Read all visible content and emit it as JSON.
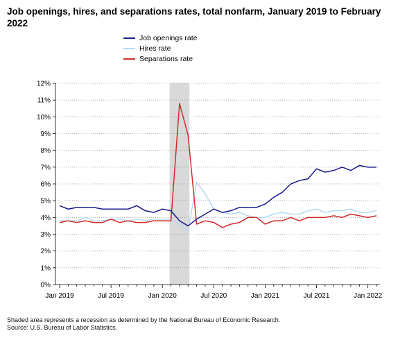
{
  "title": "Job openings, hires, and separations rates, total nonfarm, January 2019 to February 2022",
  "footnote": {
    "line1": "Shaded area represents a recession as determined by the National Bureau of Economic Research.",
    "line2": "Source: U.S. Bureau of Labor Statistics."
  },
  "colors": {
    "job_openings": "#1a1a8c",
    "hires": "#b3d9f2",
    "separations": "#d42a2a",
    "recession": "#d9d9d9"
  },
  "chart_data": {
    "type": "line",
    "x": [
      "2019-01",
      "2019-02",
      "2019-03",
      "2019-04",
      "2019-05",
      "2019-06",
      "2019-07",
      "2019-08",
      "2019-09",
      "2019-10",
      "2019-11",
      "2019-12",
      "2020-01",
      "2020-02",
      "2020-03",
      "2020-04",
      "2020-05",
      "2020-06",
      "2020-07",
      "2020-08",
      "2020-09",
      "2020-10",
      "2020-11",
      "2020-12",
      "2021-01",
      "2021-02",
      "2021-03",
      "2021-04",
      "2021-05",
      "2021-06",
      "2021-07",
      "2021-08",
      "2021-09",
      "2021-10",
      "2021-11",
      "2021-12",
      "2022-01",
      "2022-02"
    ],
    "x_tick_labels": [
      "Jan 2019",
      "Jul 2019",
      "Jan 2020",
      "Jul 2020",
      "Jan 2021",
      "Jul 2021",
      "Jan 2022"
    ],
    "x_tick_index": [
      0,
      6,
      12,
      18,
      24,
      30,
      36
    ],
    "y_tick_labels": [
      "0%",
      "1%",
      "2%",
      "3%",
      "4%",
      "5%",
      "6%",
      "7%",
      "8%",
      "9%",
      "10%",
      "11%",
      "12%"
    ],
    "ylim": [
      0,
      12
    ],
    "y_unit": "%",
    "grid": "horizontal dotted",
    "legend_position": "top-left",
    "recession_shade": [
      "2020-02",
      "2020-04"
    ],
    "series": [
      {
        "name": "Job openings rate",
        "color_key": "job_openings",
        "values": [
          4.7,
          4.5,
          4.6,
          4.6,
          4.6,
          4.5,
          4.5,
          4.5,
          4.5,
          4.7,
          4.4,
          4.3,
          4.5,
          4.4,
          3.8,
          3.5,
          3.9,
          4.2,
          4.5,
          4.3,
          4.4,
          4.6,
          4.6,
          4.6,
          4.8,
          5.2,
          5.5,
          6.0,
          6.2,
          6.3,
          6.9,
          6.7,
          6.8,
          7.0,
          6.8,
          7.1,
          7.0,
          7.0
        ]
      },
      {
        "name": "Hires rate",
        "color_key": "hires",
        "values": [
          3.8,
          3.8,
          3.8,
          4.0,
          3.8,
          3.8,
          3.9,
          3.9,
          3.8,
          3.9,
          3.8,
          3.9,
          3.9,
          3.9,
          3.6,
          3.2,
          6.1,
          5.4,
          4.5,
          4.3,
          4.2,
          4.3,
          4.1,
          4.0,
          4.0,
          4.2,
          4.3,
          4.2,
          4.2,
          4.4,
          4.5,
          4.3,
          4.4,
          4.4,
          4.5,
          4.3,
          4.3,
          4.4
        ]
      },
      {
        "name": "Separations rate",
        "color_key": "separations",
        "values": [
          3.7,
          3.8,
          3.7,
          3.8,
          3.7,
          3.7,
          3.9,
          3.7,
          3.8,
          3.7,
          3.7,
          3.8,
          3.8,
          3.8,
          10.8,
          8.9,
          3.6,
          3.8,
          3.7,
          3.4,
          3.6,
          3.7,
          4.0,
          4.0,
          3.6,
          3.8,
          3.8,
          4.0,
          3.8,
          4.0,
          4.0,
          4.0,
          4.1,
          4.0,
          4.2,
          4.1,
          4.0,
          4.1
        ]
      }
    ]
  }
}
